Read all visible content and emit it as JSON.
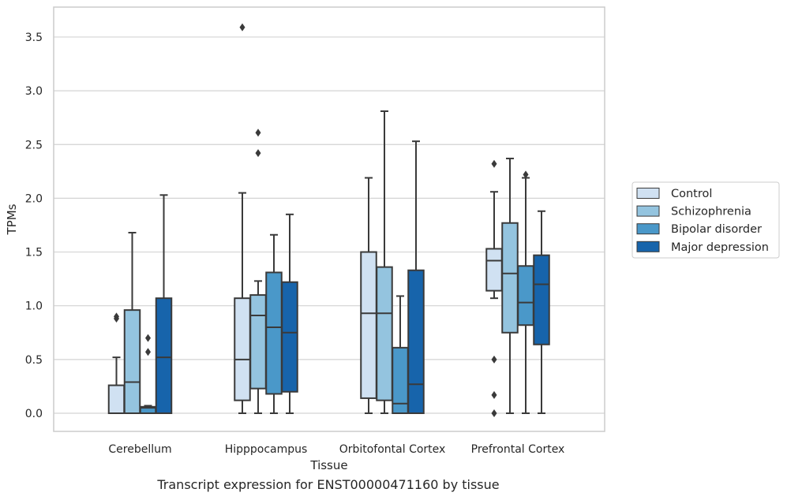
{
  "caption": "Transcript expression for ENST00000471160 by tissue",
  "chart_data": {
    "type": "boxplot",
    "xlabel": "Tissue",
    "ylabel": "TPMs",
    "ylim": [
      -0.17,
      3.77
    ],
    "yticks": [
      0.0,
      0.5,
      1.0,
      1.5,
      2.0,
      2.5,
      3.0,
      3.5
    ],
    "ytick_labels": [
      "0.0",
      "0.5",
      "1.0",
      "1.5",
      "2.0",
      "2.5",
      "3.0",
      "3.5"
    ],
    "grid": "horizontal",
    "legend_position": "right-outside",
    "categories": [
      "Cerebellum",
      "Hipppocampus",
      "Orbitofontal Cortex",
      "Prefrontal Cortex"
    ],
    "series": [
      {
        "name": "Control",
        "color": "#d0e1f2",
        "boxes": [
          {
            "whislo": 0.0,
            "q1": 0.0,
            "med": 0.0,
            "q3": 0.26,
            "whishi": 0.52,
            "fliers": [
              0.88,
              0.9
            ]
          },
          {
            "whislo": 0.0,
            "q1": 0.12,
            "med": 0.5,
            "q3": 1.07,
            "whishi": 2.05,
            "fliers": [
              3.59
            ]
          },
          {
            "whislo": 0.0,
            "q1": 0.14,
            "med": 0.93,
            "q3": 1.5,
            "whishi": 2.19,
            "fliers": []
          },
          {
            "whislo": 1.07,
            "q1": 1.14,
            "med": 1.42,
            "q3": 1.53,
            "whishi": 2.06,
            "fliers": [
              2.32,
              0.5,
              0.17,
              0.0
            ]
          }
        ]
      },
      {
        "name": "Schizophrenia",
        "color": "#94c4df",
        "boxes": [
          {
            "whislo": 0.0,
            "q1": 0.0,
            "med": 0.29,
            "q3": 0.96,
            "whishi": 1.68,
            "fliers": []
          },
          {
            "whislo": 0.0,
            "q1": 0.23,
            "med": 0.91,
            "q3": 1.1,
            "whishi": 1.23,
            "fliers": [
              2.61,
              2.42
            ]
          },
          {
            "whislo": 0.0,
            "q1": 0.12,
            "med": 0.93,
            "q3": 1.36,
            "whishi": 2.81,
            "fliers": []
          },
          {
            "whislo": 0.0,
            "q1": 0.75,
            "med": 1.3,
            "q3": 1.77,
            "whishi": 2.37,
            "fliers": []
          }
        ]
      },
      {
        "name": "Bipolar disorder",
        "color": "#4a98c9",
        "boxes": [
          {
            "whislo": 0.0,
            "q1": 0.0,
            "med": 0.05,
            "q3": 0.06,
            "whishi": 0.07,
            "fliers": [
              0.7,
              0.57
            ]
          },
          {
            "whislo": 0.0,
            "q1": 0.18,
            "med": 0.8,
            "q3": 1.31,
            "whishi": 1.66,
            "fliers": []
          },
          {
            "whislo": 0.0,
            "q1": 0.0,
            "med": 0.09,
            "q3": 0.61,
            "whishi": 1.09,
            "fliers": []
          },
          {
            "whislo": 0.0,
            "q1": 0.82,
            "med": 1.03,
            "q3": 1.37,
            "whishi": 2.19,
            "fliers": [
              2.22
            ]
          }
        ]
      },
      {
        "name": "Major depression",
        "color": "#1764ab",
        "boxes": [
          {
            "whislo": 0.0,
            "q1": 0.0,
            "med": 0.52,
            "q3": 1.07,
            "whishi": 2.03,
            "fliers": []
          },
          {
            "whislo": 0.0,
            "q1": 0.2,
            "med": 0.75,
            "q3": 1.22,
            "whishi": 1.85,
            "fliers": []
          },
          {
            "whislo": 0.0,
            "q1": 0.0,
            "med": 0.27,
            "q3": 1.33,
            "whishi": 2.53,
            "fliers": []
          },
          {
            "whislo": 0.0,
            "q1": 0.64,
            "med": 1.2,
            "q3": 1.47,
            "whishi": 1.88,
            "fliers": []
          }
        ]
      }
    ]
  }
}
